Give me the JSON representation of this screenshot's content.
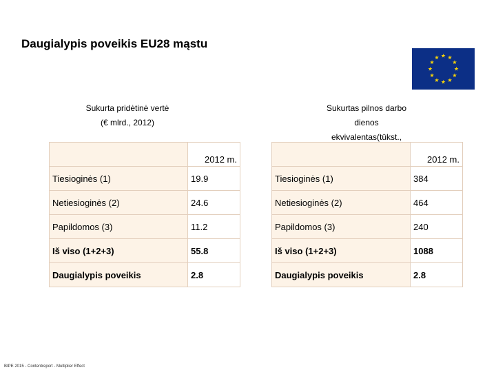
{
  "header": {
    "title": "Daugialypis poveikis EU28 mąstu"
  },
  "flag": {
    "name": "EU flag",
    "color": "#0c2f86",
    "star_color": "#f5d20a"
  },
  "left_table": {
    "caption_line1": "Sukurta pridėtinė vertė",
    "caption_line2": "(€ mlrd., 2012)",
    "year_header": "2012 m.",
    "rows": [
      {
        "label": "Tiesioginės (1)",
        "value": "19.9"
      },
      {
        "label": "Netiesioginės (2)",
        "value": "24.6"
      },
      {
        "label": "Papildomos (3)",
        "value": "11.2"
      },
      {
        "label": "Iš viso (1+2+3)",
        "value": "55.8"
      },
      {
        "label": "Daugialypis poveikis",
        "value": "2.8"
      }
    ]
  },
  "right_table": {
    "caption_line1": "Sukurtas pilnos darbo",
    "caption_line2": "dienos",
    "caption_line3": "ekvivalentas(tūkst.,",
    "year_header": "2012 m.",
    "rows": [
      {
        "label": "Tiesioginės (1)",
        "value": "384"
      },
      {
        "label": "Netiesioginės (2)",
        "value": "464"
      },
      {
        "label": "Papildomos (3)",
        "value": "240"
      },
      {
        "label": "Iš viso (1+2+3)",
        "value": "1088"
      },
      {
        "label": "Daugialypis poveikis",
        "value": "2.8"
      }
    ]
  },
  "footer": {
    "text": "BIPE 2015 - Contentreport - Multiplier Effect"
  }
}
